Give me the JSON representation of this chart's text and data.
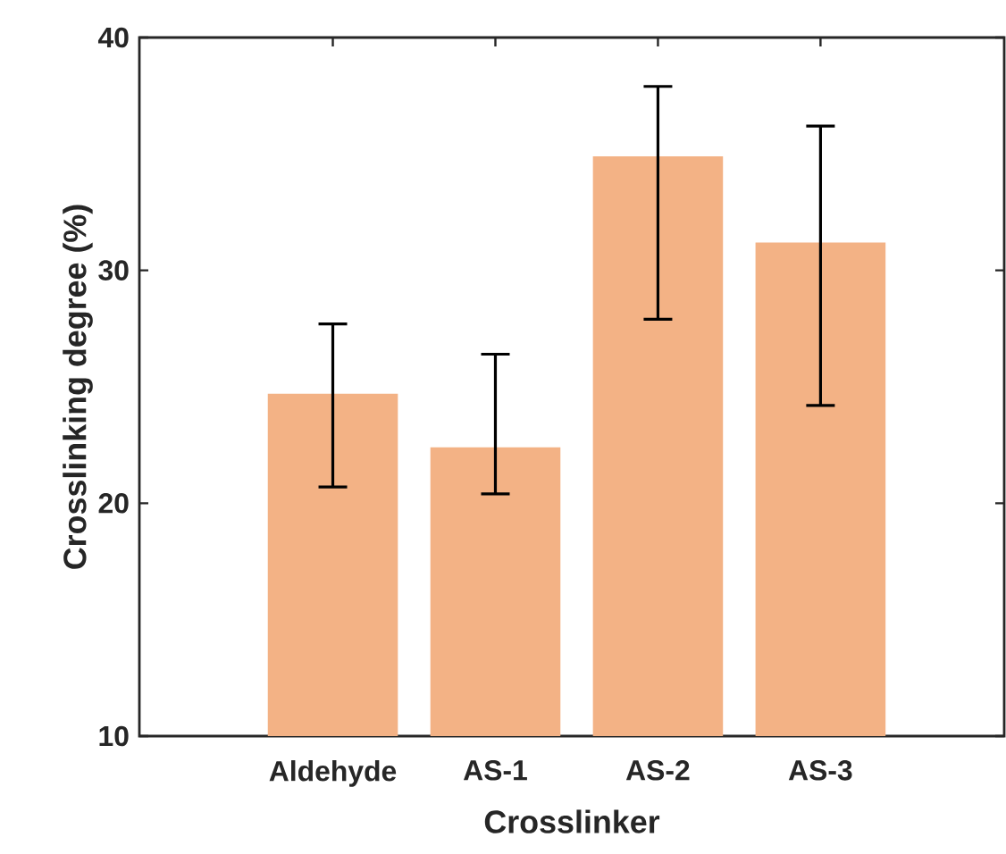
{
  "chart_data": {
    "type": "bar",
    "xlabel": "Crosslinker",
    "ylabel": "Crosslinking degree (%)",
    "categories": [
      "Aldehyde",
      "AS-1",
      "AS-2",
      "AS-3"
    ],
    "values": [
      24.7,
      22.4,
      34.9,
      31.2
    ],
    "errors": [
      [
        20.7,
        27.7
      ],
      [
        20.4,
        26.4
      ],
      [
        27.9,
        37.9
      ],
      [
        24.2,
        36.2
      ]
    ],
    "color": "#f3b285",
    "ylim": [
      10,
      40
    ],
    "yticks": [
      10,
      20,
      30,
      40
    ]
  }
}
